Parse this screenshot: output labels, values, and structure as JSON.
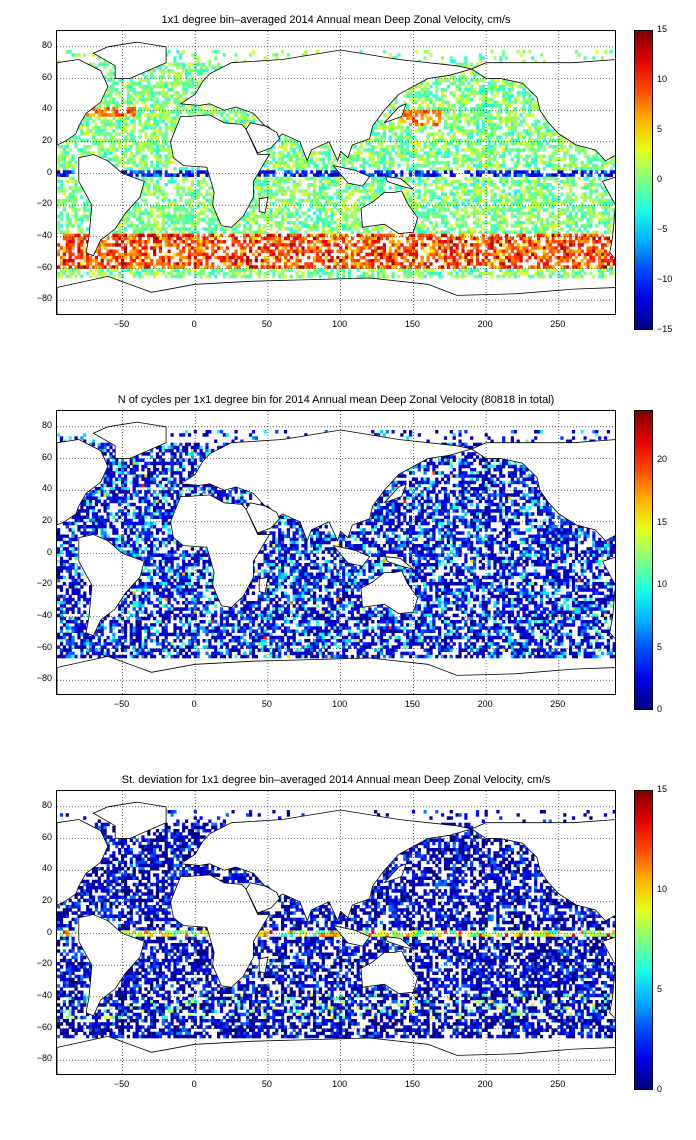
{
  "panels": [
    {
      "title": "1x1 degree bin–averaged 2014 Annual mean Deep Zonal Velocity, cm/s",
      "colormap": "jet",
      "colorbar": {
        "range": [
          -15,
          15
        ],
        "ticks": [
          "15",
          "10",
          "5",
          "0",
          "−5",
          "−10",
          "−15"
        ]
      },
      "pattern": "velocity"
    },
    {
      "title": "N of cycles per 1x1 degree bin for 2014 Annual mean Deep Zonal Velocity (80818 in total)",
      "colormap": "jet",
      "colorbar": {
        "range": [
          0,
          24
        ],
        "ticks": [
          "20",
          "15",
          "10",
          "5",
          "0"
        ]
      },
      "pattern": "count"
    },
    {
      "title": "St. deviation for 1x1 degree bin–averaged 2014 Annual mean Deep Zonal Velocity, cm/s",
      "colormap": "jet",
      "colorbar": {
        "range": [
          0,
          15
        ],
        "ticks": [
          "15",
          "10",
          "5",
          "0"
        ]
      },
      "pattern": "std"
    }
  ],
  "axes": {
    "xlim": [
      -95,
      290
    ],
    "ylim": [
      -90,
      90
    ],
    "xticks": [
      "−50",
      "0",
      "50",
      "100",
      "150",
      "200",
      "250"
    ],
    "yticks": [
      "80",
      "60",
      "40",
      "20",
      "0",
      "−20",
      "−40",
      "−60",
      "−80"
    ],
    "grid": "dotted"
  }
}
